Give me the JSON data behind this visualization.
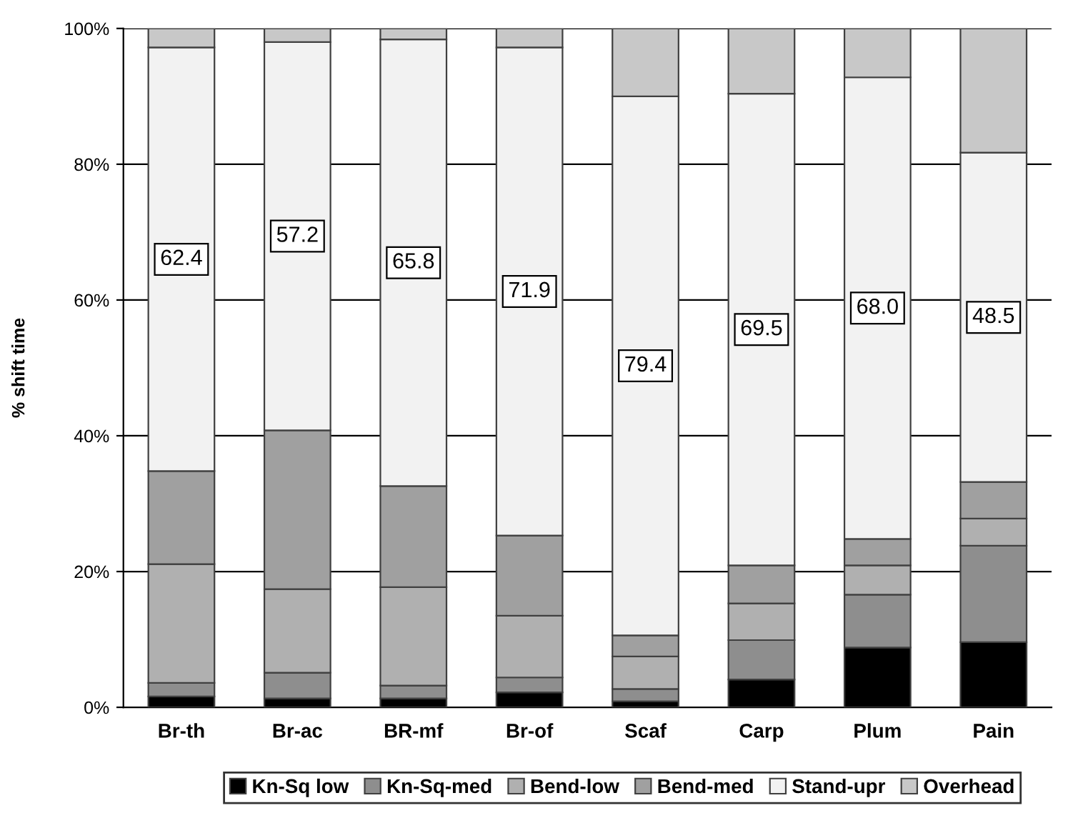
{
  "chart_data": {
    "type": "bar",
    "stacked": true,
    "ylabel": "% shift time",
    "categories": [
      "Br-th",
      "Br-ac",
      "BR-mf",
      "Br-of",
      "Scaf",
      "Carp",
      "Plum",
      "Pain"
    ],
    "series": [
      {
        "name": "Kn-Sq low",
        "color": "#000000",
        "values": [
          1.6,
          1.3,
          1.3,
          2.2,
          0.9,
          4.1,
          8.8,
          9.6
        ]
      },
      {
        "name": "Kn-Sq-med",
        "color": "#8e8e8e",
        "values": [
          2.0,
          3.8,
          1.9,
          2.2,
          1.8,
          5.8,
          7.8,
          14.2
        ]
      },
      {
        "name": "Bend-low",
        "color": "#b0b0b0",
        "values": [
          17.5,
          12.3,
          14.5,
          9.1,
          4.8,
          5.4,
          4.3,
          4.0
        ]
      },
      {
        "name": "Bend-med",
        "color": "#a0a0a0",
        "values": [
          13.7,
          23.4,
          14.9,
          11.8,
          3.1,
          5.6,
          3.9,
          5.4
        ]
      },
      {
        "name": "Stand-upr",
        "color": "#f2f2f2",
        "values": [
          62.4,
          57.2,
          65.8,
          71.9,
          79.4,
          69.5,
          68.0,
          48.5
        ],
        "value_labels": [
          "62.4",
          "57.2",
          "65.8",
          "71.9",
          "79.4",
          "69.5",
          "68.0",
          "48.5"
        ]
      },
      {
        "name": "Overhead",
        "color": "#c8c8c8",
        "values": [
          2.8,
          2.0,
          1.6,
          2.8,
          10.0,
          9.6,
          7.2,
          18.3
        ]
      }
    ],
    "ylim": [
      0,
      100
    ],
    "yticks": [
      {
        "value": 0,
        "label": "0%"
      },
      {
        "value": 20,
        "label": "20%"
      },
      {
        "value": 40,
        "label": "40%"
      },
      {
        "value": 60,
        "label": "60%"
      },
      {
        "value": 80,
        "label": "80%"
      },
      {
        "value": 100,
        "label": "100%"
      }
    ],
    "grid": "y",
    "legend": "bottom"
  }
}
